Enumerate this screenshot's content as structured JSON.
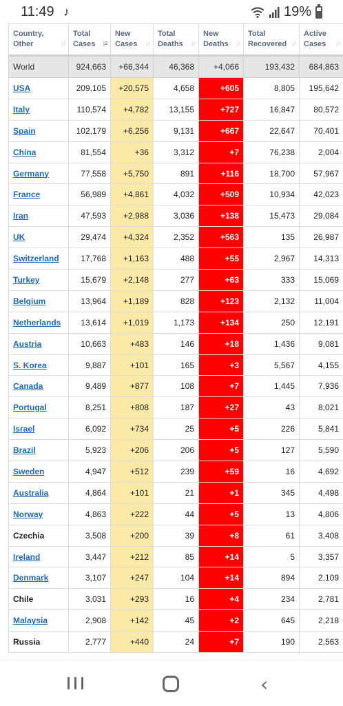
{
  "status_bar": {
    "time": "11:49",
    "left_icon": "notification-note-icon",
    "battery_percent": "19%",
    "icons": [
      "wifi-icon",
      "signal-icon",
      "battery-icon"
    ]
  },
  "table": {
    "columns": [
      {
        "label_line1": "Country,",
        "label_line2": "Other",
        "sort": "none"
      },
      {
        "label_line1": "Total",
        "label_line2": "Cases",
        "sort": "desc"
      },
      {
        "label_line1": "New",
        "label_line2": "Cases",
        "sort": "none"
      },
      {
        "label_line1": "Total",
        "label_line2": "Deaths",
        "sort": "none"
      },
      {
        "label_line1": "New",
        "label_line2": "Deaths",
        "sort": "none"
      },
      {
        "label_line1": "Total",
        "label_line2": "Recovered",
        "sort": "none"
      },
      {
        "label_line1": "Active",
        "label_line2": "Cases",
        "sort": "none"
      }
    ],
    "world": {
      "country": "World",
      "total_cases": "924,663",
      "new_cases": "+66,344",
      "total_deaths": "46,368",
      "new_deaths": "+4,066",
      "total_recovered": "193,432",
      "active_cases": "684,863"
    },
    "rows": [
      {
        "country": "USA",
        "link": true,
        "total_cases": "209,105",
        "new_cases": "+20,575",
        "total_deaths": "4,658",
        "new_deaths": "+605",
        "total_recovered": "8,805",
        "active_cases": "195,642"
      },
      {
        "country": "Italy",
        "link": true,
        "total_cases": "110,574",
        "new_cases": "+4,782",
        "total_deaths": "13,155",
        "new_deaths": "+727",
        "total_recovered": "16,847",
        "active_cases": "80,572"
      },
      {
        "country": "Spain",
        "link": true,
        "total_cases": "102,179",
        "new_cases": "+6,256",
        "total_deaths": "9,131",
        "new_deaths": "+667",
        "total_recovered": "22,647",
        "active_cases": "70,401"
      },
      {
        "country": "China",
        "link": true,
        "total_cases": "81,554",
        "new_cases": "+36",
        "total_deaths": "3,312",
        "new_deaths": "+7",
        "total_recovered": "76,238",
        "active_cases": "2,004"
      },
      {
        "country": "Germany",
        "link": true,
        "total_cases": "77,558",
        "new_cases": "+5,750",
        "total_deaths": "891",
        "new_deaths": "+116",
        "total_recovered": "18,700",
        "active_cases": "57,967"
      },
      {
        "country": "France",
        "link": true,
        "total_cases": "56,989",
        "new_cases": "+4,861",
        "total_deaths": "4,032",
        "new_deaths": "+509",
        "total_recovered": "10,934",
        "active_cases": "42,023"
      },
      {
        "country": "Iran",
        "link": true,
        "total_cases": "47,593",
        "new_cases": "+2,988",
        "total_deaths": "3,036",
        "new_deaths": "+138",
        "total_recovered": "15,473",
        "active_cases": "29,084"
      },
      {
        "country": "UK",
        "link": true,
        "total_cases": "29,474",
        "new_cases": "+4,324",
        "total_deaths": "2,352",
        "new_deaths": "+563",
        "total_recovered": "135",
        "active_cases": "26,987"
      },
      {
        "country": "Switzerland",
        "link": true,
        "total_cases": "17,768",
        "new_cases": "+1,163",
        "total_deaths": "488",
        "new_deaths": "+55",
        "total_recovered": "2,967",
        "active_cases": "14,313"
      },
      {
        "country": "Turkey",
        "link": true,
        "total_cases": "15,679",
        "new_cases": "+2,148",
        "total_deaths": "277",
        "new_deaths": "+63",
        "total_recovered": "333",
        "active_cases": "15,069"
      },
      {
        "country": "Belgium",
        "link": true,
        "total_cases": "13,964",
        "new_cases": "+1,189",
        "total_deaths": "828",
        "new_deaths": "+123",
        "total_recovered": "2,132",
        "active_cases": "11,004"
      },
      {
        "country": "Netherlands",
        "link": true,
        "total_cases": "13,614",
        "new_cases": "+1,019",
        "total_deaths": "1,173",
        "new_deaths": "+134",
        "total_recovered": "250",
        "active_cases": "12,191"
      },
      {
        "country": "Austria",
        "link": true,
        "total_cases": "10,663",
        "new_cases": "+483",
        "total_deaths": "146",
        "new_deaths": "+18",
        "total_recovered": "1,436",
        "active_cases": "9,081"
      },
      {
        "country": "S. Korea",
        "link": true,
        "total_cases": "9,887",
        "new_cases": "+101",
        "total_deaths": "165",
        "new_deaths": "+3",
        "total_recovered": "5,567",
        "active_cases": "4,155"
      },
      {
        "country": "Canada",
        "link": true,
        "total_cases": "9,489",
        "new_cases": "+877",
        "total_deaths": "108",
        "new_deaths": "+7",
        "total_recovered": "1,445",
        "active_cases": "7,936"
      },
      {
        "country": "Portugal",
        "link": true,
        "total_cases": "8,251",
        "new_cases": "+808",
        "total_deaths": "187",
        "new_deaths": "+27",
        "total_recovered": "43",
        "active_cases": "8,021"
      },
      {
        "country": "Israel",
        "link": true,
        "total_cases": "6,092",
        "new_cases": "+734",
        "total_deaths": "25",
        "new_deaths": "+5",
        "total_recovered": "226",
        "active_cases": "5,841"
      },
      {
        "country": "Brazil",
        "link": true,
        "total_cases": "5,923",
        "new_cases": "+206",
        "total_deaths": "206",
        "new_deaths": "+5",
        "total_recovered": "127",
        "active_cases": "5,590"
      },
      {
        "country": "Sweden",
        "link": true,
        "total_cases": "4,947",
        "new_cases": "+512",
        "total_deaths": "239",
        "new_deaths": "+59",
        "total_recovered": "16",
        "active_cases": "4,692"
      },
      {
        "country": "Australia",
        "link": true,
        "total_cases": "4,864",
        "new_cases": "+101",
        "total_deaths": "21",
        "new_deaths": "+1",
        "total_recovered": "345",
        "active_cases": "4,498"
      },
      {
        "country": "Norway",
        "link": true,
        "total_cases": "4,863",
        "new_cases": "+222",
        "total_deaths": "44",
        "new_deaths": "+5",
        "total_recovered": "13",
        "active_cases": "4,806"
      },
      {
        "country": "Czechia",
        "link": false,
        "total_cases": "3,508",
        "new_cases": "+200",
        "total_deaths": "39",
        "new_deaths": "+8",
        "total_recovered": "61",
        "active_cases": "3,408"
      },
      {
        "country": "Ireland",
        "link": true,
        "total_cases": "3,447",
        "new_cases": "+212",
        "total_deaths": "85",
        "new_deaths": "+14",
        "total_recovered": "5",
        "active_cases": "3,357"
      },
      {
        "country": "Denmark",
        "link": true,
        "total_cases": "3,107",
        "new_cases": "+247",
        "total_deaths": "104",
        "new_deaths": "+14",
        "total_recovered": "894",
        "active_cases": "2,109"
      },
      {
        "country": "Chile",
        "link": false,
        "total_cases": "3,031",
        "new_cases": "+293",
        "total_deaths": "16",
        "new_deaths": "+4",
        "total_recovered": "234",
        "active_cases": "2,781"
      },
      {
        "country": "Malaysia",
        "link": true,
        "total_cases": "2,908",
        "new_cases": "+142",
        "total_deaths": "45",
        "new_deaths": "+2",
        "total_recovered": "645",
        "active_cases": "2,218"
      },
      {
        "country": "Russia",
        "link": false,
        "total_cases": "2,777",
        "new_cases": "+440",
        "total_deaths": "24",
        "new_deaths": "+7",
        "total_recovered": "190",
        "active_cases": "2,563"
      }
    ]
  },
  "nav_bar": {
    "icons": [
      "recent-apps-icon",
      "home-icon",
      "back-icon"
    ],
    "back_glyph": "‹"
  },
  "colors": {
    "new_cases_bg": "#fbe9a8",
    "new_deaths_bg": "#ff0000",
    "link": "#1e6ab5",
    "world_row_bg": "#e6e6e6"
  }
}
